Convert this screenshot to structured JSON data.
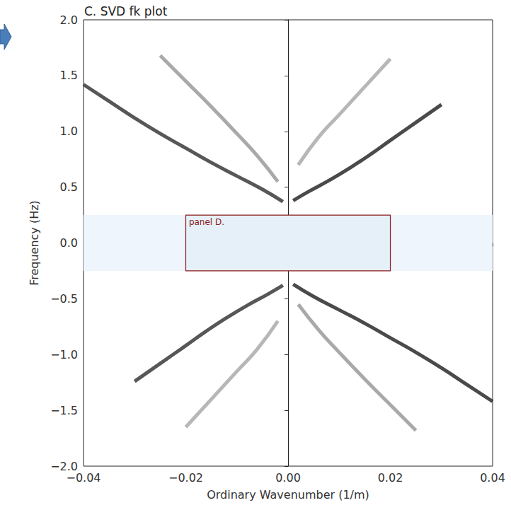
{
  "chart_data": {
    "type": "line",
    "title": "C. SVD fk plot",
    "x_label": "Ordinary Wavenumber (1/m)",
    "y_label": "Frequency (Hz)",
    "xlim": [
      -0.04,
      0.04
    ],
    "ylim": [
      -2,
      2
    ],
    "xticks": [
      {
        "value": -0.04,
        "label": "−0.04"
      },
      {
        "value": -0.02,
        "label": "−0.02"
      },
      {
        "value": 0,
        "label": "0.00"
      },
      {
        "value": 0.02,
        "label": "0.02"
      },
      {
        "value": 0.04,
        "label": "0.04"
      }
    ],
    "yticks": [
      {
        "value": -2,
        "label": "−2.0"
      },
      {
        "value": -1.5,
        "label": "−1.5"
      },
      {
        "value": -1,
        "label": "−1.0"
      },
      {
        "value": -0.5,
        "label": "−0.5"
      },
      {
        "value": 0,
        "label": "0.0"
      },
      {
        "value": 0.5,
        "label": "0.5"
      },
      {
        "value": 1,
        "label": "1.0"
      },
      {
        "value": 1.5,
        "label": "1.5"
      },
      {
        "value": 2,
        "label": "2.0"
      }
    ],
    "grid": false,
    "series": [
      {
        "color": "#3a3a3a",
        "x": [
          -0.001,
          -0.005,
          -0.01,
          -0.015,
          -0.02,
          -0.025,
          -0.03,
          -0.035,
          -0.04
        ],
        "values": [
          0.37,
          0.48,
          0.6,
          0.72,
          0.85,
          0.98,
          1.12,
          1.27,
          1.42
        ]
      },
      {
        "color": "#2a2a2a",
        "x": [
          0.001,
          0.004,
          0.008,
          0.012,
          0.016,
          0.02,
          0.025,
          0.03
        ],
        "values": [
          0.38,
          0.46,
          0.56,
          0.67,
          0.79,
          0.92,
          1.08,
          1.24
        ]
      },
      {
        "color": "#9a9a9a",
        "x": [
          -0.002,
          -0.006,
          -0.01,
          -0.015,
          -0.02,
          -0.025
        ],
        "values": [
          0.55,
          0.78,
          0.98,
          1.22,
          1.45,
          1.68
        ]
      },
      {
        "color": "#aaaaaa",
        "x": [
          0.002,
          0.006,
          0.01,
          0.015,
          0.02
        ],
        "values": [
          0.7,
          0.95,
          1.15,
          1.4,
          1.65
        ]
      },
      {
        "color": "#2a2a2a",
        "x": [
          0.001,
          0.005,
          0.01,
          0.015,
          0.02,
          0.025,
          0.03,
          0.035,
          0.04
        ],
        "values": [
          -0.37,
          -0.48,
          -0.6,
          -0.72,
          -0.85,
          -0.98,
          -1.12,
          -1.27,
          -1.42
        ]
      },
      {
        "color": "#3a3a3a",
        "x": [
          -0.001,
          -0.004,
          -0.008,
          -0.012,
          -0.016,
          -0.02,
          -0.025,
          -0.03
        ],
        "values": [
          -0.38,
          -0.46,
          -0.56,
          -0.67,
          -0.79,
          -0.92,
          -1.08,
          -1.24
        ]
      },
      {
        "color": "#9a9a9a",
        "x": [
          0.002,
          0.006,
          0.01,
          0.015,
          0.02,
          0.025
        ],
        "values": [
          -0.55,
          -0.78,
          -0.98,
          -1.22,
          -1.45,
          -1.68
        ]
      },
      {
        "color": "#aaaaaa",
        "x": [
          -0.002,
          -0.006,
          -0.01,
          -0.015,
          -0.02
        ],
        "values": [
          -0.7,
          -0.95,
          -1.15,
          -1.4,
          -1.65
        ]
      }
    ],
    "annotations": [
      {
        "type": "band",
        "ylim": [
          -0.25,
          0.25
        ],
        "color": "#eef5fc"
      },
      {
        "type": "box",
        "text": "panel D.",
        "xlim": [
          -0.02,
          0.02
        ],
        "ylim": [
          -0.25,
          0.25
        ],
        "color": "#8b1a1a"
      }
    ]
  }
}
